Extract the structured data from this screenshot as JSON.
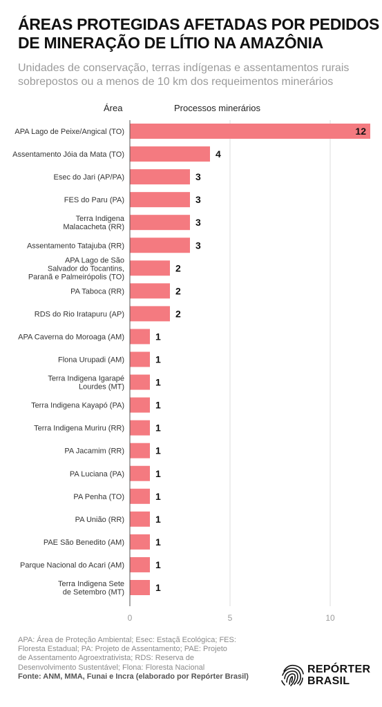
{
  "header": {
    "title_lines": [
      "ÁREAS PROTEGIDAS AFETADAS POR PEDIDOS",
      "DE MINERAÇÃO DE LÍTIO NA AMAZÔNIA"
    ],
    "subtitle_lines": [
      "Unidades de conservação, terras indígenas e assentamentos rurais",
      "sobrepostos ou a menos de 10 km dos requeimentos minerários"
    ]
  },
  "chart_data": {
    "type": "bar",
    "orientation": "horizontal",
    "category_header": "Área",
    "value_header": "Processos minerários",
    "categories": [
      [
        "APA Lago de Peixe/Angical (TO)"
      ],
      [
        "Assentamento Jóia da Mata (TO)"
      ],
      [
        "Esec do Jari (AP/PA)"
      ],
      [
        "FES do Paru (PA)"
      ],
      [
        "Terra Indigena",
        "Malacacheta (RR)"
      ],
      [
        "Assentamento Tatajuba (RR)"
      ],
      [
        "APA Lago de São",
        "Salvador do Tocantins,",
        "Paranã e Palmeirópolis (TO)"
      ],
      [
        "PA Taboca (RR)"
      ],
      [
        "RDS do Rio Iratapuru (AP)"
      ],
      [
        "APA Caverna do Moroaga (AM)"
      ],
      [
        "Flona Urupadi (AM)"
      ],
      [
        "Terra Indigena Igarapé",
        "Lourdes (MT)"
      ],
      [
        "Terra Indigena Kayapó (PA)"
      ],
      [
        "Terra Indigena Muriru (RR)"
      ],
      [
        "PA Jacamim (RR)"
      ],
      [
        "PA Luciana (PA)"
      ],
      [
        "PA Penha (TO)"
      ],
      [
        "PA União (RR)"
      ],
      [
        "PAE São Benedito (AM)"
      ],
      [
        "Parque Nacional do Acari (AM)"
      ],
      [
        "Terra Indigena Sete",
        "de Setembro (MT)"
      ]
    ],
    "values": [
      12,
      4,
      3,
      3,
      3,
      3,
      2,
      2,
      2,
      1,
      1,
      1,
      1,
      1,
      1,
      1,
      1,
      1,
      1,
      1,
      1
    ],
    "xlim": [
      0,
      12
    ],
    "x_ticks": [
      0,
      5,
      10
    ],
    "grid": "vertical",
    "bar_color": "#f47a80"
  },
  "footer": {
    "notes_lines": [
      "APA: Área de Proteção Ambiental; Esec: Estaçã Ecológica; FES:",
      "Floresta Estadual; PA: Projeto de Assentamento; PAE: Projeto",
      "de Assentamento Agroextrativista; RDS: Reserva de",
      "Desenvolvimento Sustentável; Flona: Floresta Nacional"
    ],
    "source": "Fonte: ANM, MMA, Funai e Incra (elaborado por Repórter Brasil)",
    "logo_lines": [
      "REPÓRTER",
      "BRASIL"
    ]
  }
}
